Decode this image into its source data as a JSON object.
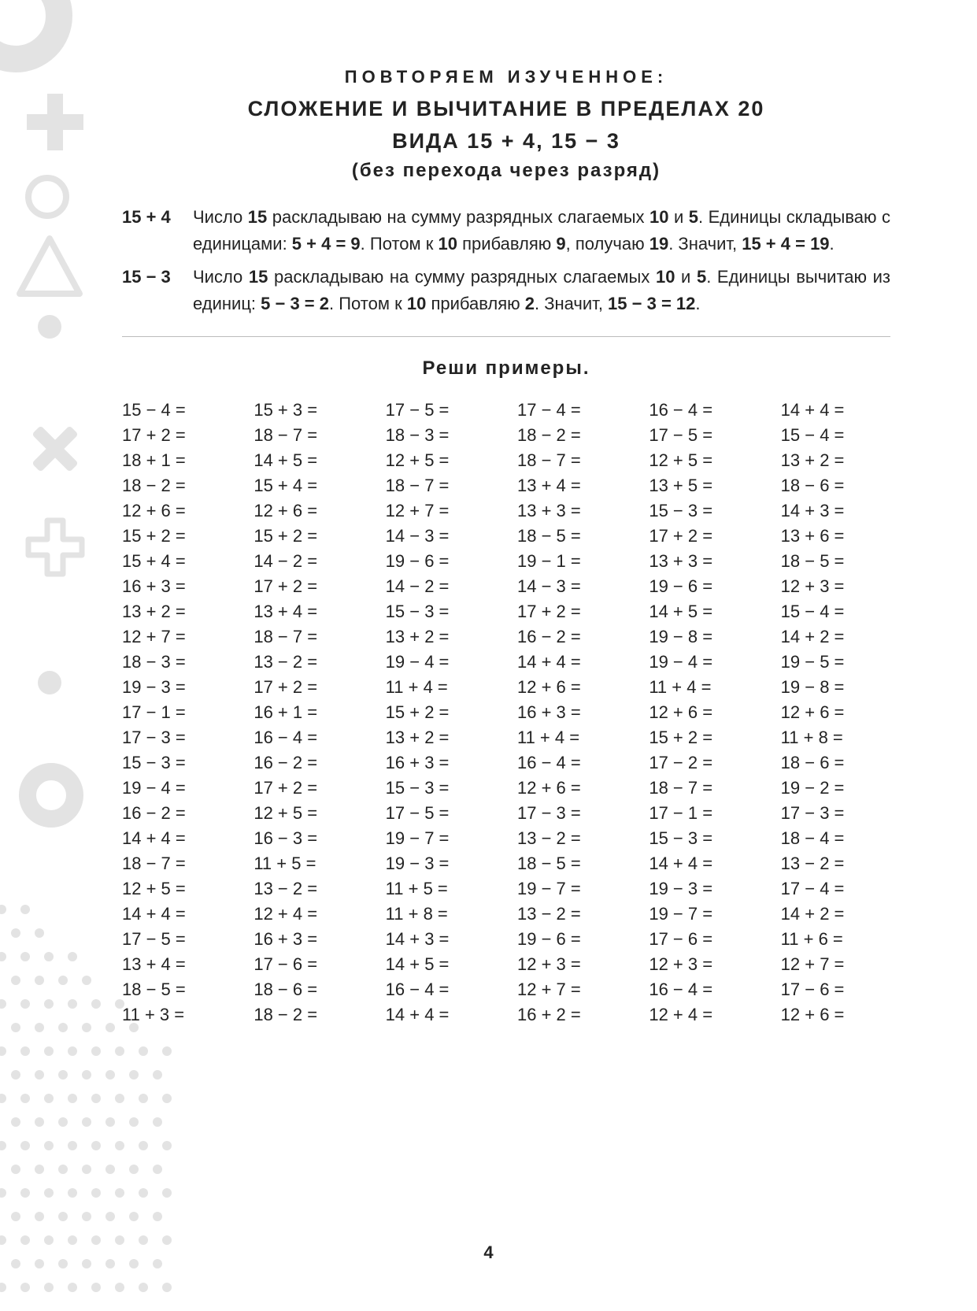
{
  "deco_color": "#e3e3e3",
  "titles": {
    "super": "ПОВТОРЯЕМ  ИЗУЧЕННОЕ:",
    "line1": "СЛОЖЕНИЕ  И  ВЫЧИТАНИЕ  В  ПРЕДЕЛАХ  20",
    "line2": "ВИДА  15 + 4,  15 − 3",
    "line3": "(без  перехода  через  разряд)"
  },
  "explanations": [
    {
      "lhs": "15 + 4",
      "parts": [
        {
          "t": "Число ",
          "b": false
        },
        {
          "t": "15",
          "b": true
        },
        {
          "t": " раскладываю на сумму разрядных слагаемых ",
          "b": false
        },
        {
          "t": "10",
          "b": true
        },
        {
          "t": " и ",
          "b": false
        },
        {
          "t": "5",
          "b": true
        },
        {
          "t": ". Единицы складываю с единицами: ",
          "b": false
        },
        {
          "t": "5 + 4 = 9",
          "b": true
        },
        {
          "t": ". Потом к ",
          "b": false
        },
        {
          "t": "10",
          "b": true
        },
        {
          "t": " прибавляю ",
          "b": false
        },
        {
          "t": "9",
          "b": true
        },
        {
          "t": ", получаю ",
          "b": false
        },
        {
          "t": "19",
          "b": true
        },
        {
          "t": ". Значит, ",
          "b": false
        },
        {
          "t": "15 + 4 = 19",
          "b": true
        },
        {
          "t": ".",
          "b": false
        }
      ]
    },
    {
      "lhs": "15 − 3",
      "parts": [
        {
          "t": "Число ",
          "b": false
        },
        {
          "t": "15",
          "b": true
        },
        {
          "t": " раскладываю на сумму разрядных слагаемых ",
          "b": false
        },
        {
          "t": "10",
          "b": true
        },
        {
          "t": " и ",
          "b": false
        },
        {
          "t": "5",
          "b": true
        },
        {
          "t": ". Единицы вычитаю из единиц: ",
          "b": false
        },
        {
          "t": "5 − 3 = 2",
          "b": true
        },
        {
          "t": ". Потом к ",
          "b": false
        },
        {
          "t": "10",
          "b": true
        },
        {
          "t": " прибавляю ",
          "b": false
        },
        {
          "t": "2",
          "b": true
        },
        {
          "t": ". Значит, ",
          "b": false
        },
        {
          "t": "15 − 3 = 12",
          "b": true
        },
        {
          "t": ".",
          "b": false
        }
      ]
    }
  ],
  "task_title": "Реши  примеры.",
  "columns": [
    [
      "15 − 4 =",
      "17 + 2 =",
      "18 + 1 =",
      "18 − 2 =",
      "12 + 6 =",
      "15 + 2 =",
      "15 + 4 =",
      "16 + 3 =",
      "13 + 2 =",
      "12 + 7 =",
      "18 − 3 =",
      "19 − 3 =",
      "17 − 1 =",
      "17 − 3 =",
      "15 − 3 =",
      "19 − 4 =",
      "16 − 2 =",
      "14 + 4 =",
      "18 − 7 =",
      "12 + 5 =",
      "14 + 4 =",
      "17 − 5 =",
      "13 + 4 =",
      "18 − 5 =",
      "11 + 3 ="
    ],
    [
      "15 + 3 =",
      "18 − 7 =",
      "14 + 5 =",
      "15 + 4 =",
      "12 + 6 =",
      "15 + 2 =",
      "14 − 2 =",
      "17 + 2 =",
      "13 + 4 =",
      "18 − 7 =",
      "13 − 2 =",
      "17 + 2 =",
      "16 + 1 =",
      "16 − 4 =",
      "16 − 2 =",
      "17 + 2 =",
      "12 + 5 =",
      "16 − 3 =",
      "11 + 5 =",
      "13 − 2 =",
      "12 + 4 =",
      "16 + 3 =",
      "17 − 6 =",
      "18 − 6 =",
      "18 − 2 ="
    ],
    [
      "17 − 5 =",
      "18 − 3 =",
      "12 + 5 =",
      "18 − 7 =",
      "12 + 7 =",
      "14 − 3 =",
      "19 − 6 =",
      "14 − 2 =",
      "15 − 3 =",
      "13 + 2 =",
      "19 − 4 =",
      "11 + 4 =",
      "15 + 2 =",
      "13 + 2 =",
      "16 + 3 =",
      "15 − 3 =",
      "17 − 5 =",
      "19 − 7 =",
      "19 − 3 =",
      "11 + 5 =",
      "11 + 8 =",
      "14 + 3 =",
      "14 + 5 =",
      "16 − 4 =",
      "14 + 4 ="
    ],
    [
      "17 − 4 =",
      "18 − 2 =",
      "18 − 7 =",
      "13 + 4 =",
      "13 + 3 =",
      "18 − 5 =",
      "19 − 1 =",
      "14 − 3 =",
      "17 + 2 =",
      "16 − 2 =",
      "14 + 4 =",
      "12 + 6 =",
      "16 + 3 =",
      "11 + 4 =",
      "16 − 4 =",
      "12 + 6 =",
      "17 − 3 =",
      "13 − 2 =",
      "18 − 5 =",
      "19 − 7 =",
      "13 − 2 =",
      "19 − 6 =",
      "12 + 3 =",
      "12 + 7 =",
      "16 + 2 ="
    ],
    [
      "16 − 4 =",
      "17 − 5 =",
      "12 + 5 =",
      "13 + 5 =",
      "15 − 3 =",
      "17 + 2 =",
      "13 + 3 =",
      "19 − 6 =",
      "14 + 5 =",
      "19 − 8 =",
      "19 − 4 =",
      "11 + 4 =",
      "12 + 6 =",
      "15 + 2 =",
      "17 − 2 =",
      "18 − 7 =",
      "17 − 1 =",
      "15 − 3 =",
      "14 + 4 =",
      "19 − 3 =",
      "19 − 7 =",
      "17 − 6 =",
      "12 + 3 =",
      "16 − 4 =",
      "12 + 4 ="
    ],
    [
      "14 + 4 =",
      "15 − 4 =",
      "13 + 2 =",
      "18 − 6 =",
      "14 + 3 =",
      "13 + 6 =",
      "18 − 5 =",
      "12 + 3 =",
      "15 − 4 =",
      "14 + 2 =",
      "19 − 5 =",
      "19 − 8 =",
      "12 + 6 =",
      "11 + 8 =",
      "18 − 6 =",
      "19 − 2 =",
      "17 − 3 =",
      "18 − 4 =",
      "13 − 2 =",
      "17 − 4 =",
      "14 + 2 =",
      "11 + 6 =",
      "12 + 7 =",
      "17 − 6 =",
      "12 + 6 ="
    ]
  ],
  "page_number": "4"
}
